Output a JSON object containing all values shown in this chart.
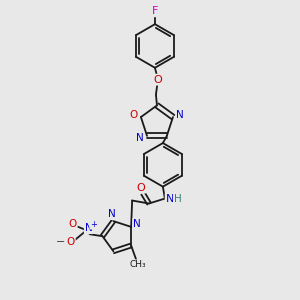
{
  "bg_color": "#e8e8e8",
  "bond_color": "#1a1a1a",
  "F_color": "#cc00cc",
  "O_color": "#cc0000",
  "N_color": "#0000cc",
  "H_color": "#338080",
  "minus_color": "#555555",
  "figsize": [
    3.0,
    3.0
  ],
  "dpi": 100,
  "xlim": [
    0,
    300
  ],
  "ylim": [
    0,
    300
  ]
}
